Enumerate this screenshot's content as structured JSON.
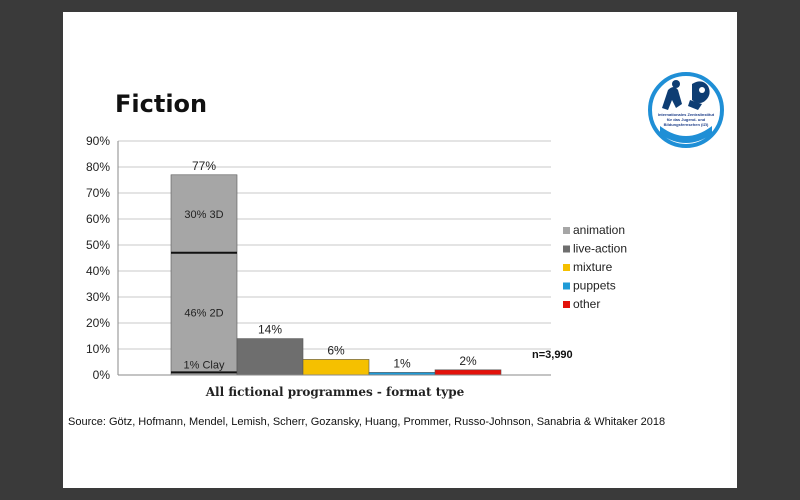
{
  "slide": {
    "title": "Fiction",
    "source": "Source: Götz, Hofmann, Mendel, Lemish, Scherr, Gozansky, Huang, Prommer, Russo-Johnson, Sanabria & Whitaker 2018",
    "logo": {
      "icon": "izi-logo-icon",
      "text": "Internationales Zentralinstitut für das Jugend- und Bildungsfernsehen (IZI)",
      "colors": {
        "ring": "#1f8fd6",
        "figure": "#0e3d73"
      }
    }
  },
  "chart_data": {
    "type": "bar",
    "xlabel": "All fictional programmes - format type",
    "ylim": [
      0,
      90
    ],
    "yticks": [
      "0%",
      "10%",
      "20%",
      "30%",
      "40%",
      "50%",
      "60%",
      "70%",
      "80%",
      "90%"
    ],
    "grid": true,
    "legend_position": "right",
    "note": "n=3,990",
    "series": [
      {
        "name": "animation",
        "value": 77,
        "label": "77%",
        "color": "#a6a6a6",
        "segments": [
          {
            "label": "1% Clay",
            "value": 1
          },
          {
            "label": "46% 2D",
            "value": 46
          },
          {
            "label": "30% 3D",
            "value": 30
          }
        ]
      },
      {
        "name": "live-action",
        "value": 14,
        "label": "14%",
        "color": "#6e6e6e"
      },
      {
        "name": "mixture",
        "value": 6,
        "label": "6%",
        "color": "#f5c000"
      },
      {
        "name": "puppets",
        "value": 1,
        "label": "1%",
        "color": "#1f9bd7"
      },
      {
        "name": "other",
        "value": 2,
        "label": "2%",
        "color": "#e3120b"
      }
    ]
  }
}
